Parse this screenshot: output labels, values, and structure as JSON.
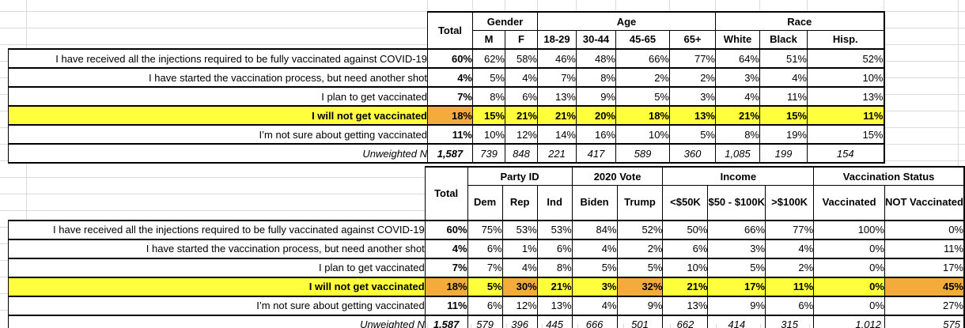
{
  "sheet": {
    "background": "#ffffff",
    "gridline_color": "#dadada"
  },
  "colors": {
    "highlight_yellow": "#FFFF3B",
    "highlight_orange": "#F3AC3C",
    "table_border": "#000000"
  },
  "row_labels": [
    "I have received all the injections required to be fully vaccinated against COVID-19",
    "I have started the vaccination process, but need another shot",
    "I plan to get vaccinated",
    "I will not get vaccinated",
    "I’m not sure about getting vaccinated",
    "Unweighted N"
  ],
  "tables": [
    {
      "id": "demographics",
      "total_header": "Total",
      "groups": [
        {
          "label": "Gender",
          "columns": [
            "M",
            "F"
          ]
        },
        {
          "label": "Age",
          "columns": [
            "18-29",
            "30-44",
            "45-65",
            "65+"
          ]
        },
        {
          "label": "Race",
          "columns": [
            "White",
            "Black",
            "Hisp."
          ]
        }
      ],
      "rows": [
        {
          "values": [
            "60%",
            "62%",
            "58%",
            "46%",
            "48%",
            "66%",
            "77%",
            "64%",
            "51%",
            "52%"
          ]
        },
        {
          "values": [
            "4%",
            "5%",
            "4%",
            "7%",
            "8%",
            "2%",
            "2%",
            "3%",
            "4%",
            "10%"
          ]
        },
        {
          "values": [
            "7%",
            "8%",
            "6%",
            "13%",
            "9%",
            "5%",
            "3%",
            "4%",
            "11%",
            "13%"
          ]
        },
        {
          "values": [
            "18%",
            "15%",
            "21%",
            "21%",
            "20%",
            "18%",
            "13%",
            "21%",
            "15%",
            "11%"
          ],
          "highlight": true,
          "orange_indices": [
            0
          ]
        },
        {
          "values": [
            "11%",
            "10%",
            "12%",
            "14%",
            "16%",
            "10%",
            "5%",
            "8%",
            "19%",
            "15%"
          ]
        },
        {
          "values": [
            "1,587",
            "739",
            "848",
            "221",
            "417",
            "589",
            "360",
            "1,085",
            "199",
            "154"
          ],
          "unweighted": true
        }
      ]
    },
    {
      "id": "politics",
      "total_header": "Total",
      "groups": [
        {
          "label": "Party ID",
          "columns": [
            "Dem",
            "Rep",
            "Ind"
          ]
        },
        {
          "label": "2020 Vote",
          "columns": [
            "Biden",
            "Trump"
          ]
        },
        {
          "label": "Income",
          "columns": [
            "<$50K",
            "$50 - $100K",
            ">$100K"
          ]
        },
        {
          "label": "Vaccination Status",
          "columns": [
            "Vaccinated",
            "NOT Vaccinated"
          ]
        }
      ],
      "rows": [
        {
          "values": [
            "60%",
            "75%",
            "53%",
            "53%",
            "84%",
            "52%",
            "50%",
            "66%",
            "77%",
            "100%",
            "0%"
          ]
        },
        {
          "values": [
            "4%",
            "6%",
            "1%",
            "6%",
            "4%",
            "2%",
            "6%",
            "3%",
            "4%",
            "0%",
            "11%"
          ]
        },
        {
          "values": [
            "7%",
            "7%",
            "4%",
            "8%",
            "5%",
            "5%",
            "10%",
            "5%",
            "2%",
            "0%",
            "17%"
          ]
        },
        {
          "values": [
            "18%",
            "5%",
            "30%",
            "21%",
            "3%",
            "32%",
            "21%",
            "17%",
            "11%",
            "0%",
            "45%"
          ],
          "highlight": true,
          "orange_indices": [
            0,
            2,
            5,
            10
          ]
        },
        {
          "values": [
            "11%",
            "6%",
            "12%",
            "13%",
            "4%",
            "9%",
            "13%",
            "9%",
            "6%",
            "0%",
            "27%"
          ]
        },
        {
          "values": [
            "1,587",
            "579",
            "396",
            "445",
            "666",
            "501",
            "662",
            "414",
            "315",
            "1,012",
            "575"
          ],
          "unweighted": true
        }
      ]
    }
  ]
}
